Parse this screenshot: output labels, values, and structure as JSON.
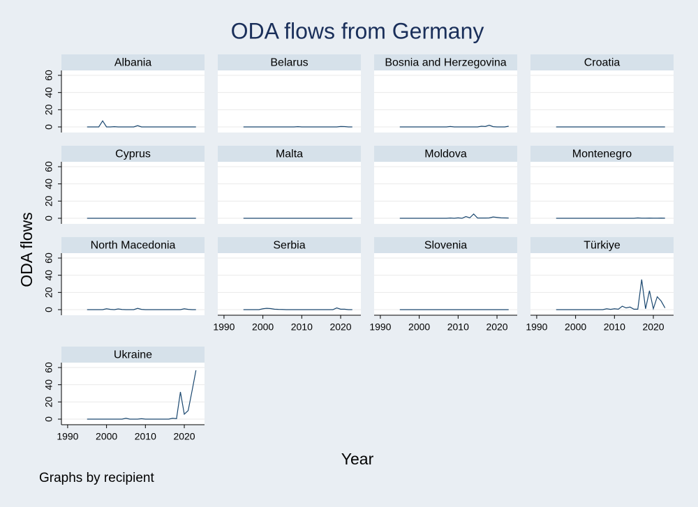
{
  "title": "ODA flows from Germany",
  "y_label": "ODA flows",
  "x_label": "Year",
  "note": "Graphs by recipient",
  "xlim": [
    1988.4,
    2025.2
  ],
  "xticks": [
    1990,
    2000,
    2010,
    2020
  ],
  "ylim": [
    -6.5,
    65.7
  ],
  "yticks": [
    0,
    20,
    40,
    60
  ],
  "grid": true,
  "chart_data": [
    {
      "type": "line",
      "title": "Albania",
      "color": "#1a476f",
      "x": [
        1995,
        1996,
        1997,
        1998,
        1999,
        2000,
        2001,
        2002,
        2003,
        2004,
        2005,
        2006,
        2007,
        2008,
        2009,
        2010,
        2011,
        2012,
        2013,
        2014,
        2015,
        2016,
        2017,
        2018,
        2019,
        2020,
        2021,
        2022,
        2023
      ],
      "values": [
        0,
        0,
        0,
        0,
        7,
        0,
        0,
        0.3,
        0,
        0,
        0,
        0,
        0,
        1.5,
        0,
        0,
        0,
        0,
        0,
        0,
        0,
        0,
        0,
        0,
        0,
        0,
        0,
        0,
        0
      ]
    },
    {
      "type": "line",
      "title": "Belarus",
      "color": "#1a476f",
      "x": [
        1995,
        1996,
        1997,
        1998,
        1999,
        2000,
        2001,
        2002,
        2003,
        2004,
        2005,
        2006,
        2007,
        2008,
        2009,
        2010,
        2011,
        2012,
        2013,
        2014,
        2015,
        2016,
        2017,
        2018,
        2019,
        2020,
        2021,
        2022,
        2023
      ],
      "values": [
        0,
        0,
        0,
        0,
        0,
        0,
        0,
        0,
        0,
        0,
        0,
        0,
        0,
        0,
        0.3,
        0,
        0,
        0,
        0,
        0,
        0,
        0,
        0,
        0,
        0,
        0.5,
        0.4,
        0,
        0
      ]
    },
    {
      "type": "line",
      "title": "Bosnia and Herzegovina",
      "color": "#1a476f",
      "x": [
        1995,
        1996,
        1997,
        1998,
        1999,
        2000,
        2001,
        2002,
        2003,
        2004,
        2005,
        2006,
        2007,
        2008,
        2009,
        2010,
        2011,
        2012,
        2013,
        2014,
        2015,
        2016,
        2017,
        2018,
        2019,
        2020,
        2021,
        2022,
        2023
      ],
      "values": [
        0,
        0,
        0,
        0,
        0,
        0,
        0,
        0,
        0,
        0,
        0,
        0,
        0,
        0.5,
        0,
        0,
        0,
        0,
        0,
        0,
        0,
        0.8,
        0.5,
        2,
        0.3,
        0,
        0,
        0,
        0.8
      ]
    },
    {
      "type": "line",
      "title": "Croatia",
      "color": "#1a476f",
      "x": [
        1995,
        1996,
        1997,
        1998,
        1999,
        2000,
        2001,
        2002,
        2003,
        2004,
        2005,
        2006,
        2007,
        2008,
        2009,
        2010,
        2011,
        2012,
        2013,
        2014,
        2015,
        2016,
        2017,
        2018,
        2019,
        2020,
        2021,
        2022,
        2023
      ],
      "values": [
        0,
        0,
        0,
        0,
        0,
        0,
        0,
        0,
        0,
        0,
        0,
        0,
        0,
        0,
        0,
        0,
        0,
        0,
        0,
        0,
        0,
        0,
        0,
        0,
        0,
        0,
        0,
        0,
        0
      ]
    },
    {
      "type": "line",
      "title": "Cyprus",
      "color": "#1a476f",
      "x": [
        1995,
        1996,
        1997,
        1998,
        1999,
        2000,
        2001,
        2002,
        2003,
        2004,
        2005,
        2006,
        2007,
        2008,
        2009,
        2010,
        2011,
        2012,
        2013,
        2014,
        2015,
        2016,
        2017,
        2018,
        2019,
        2020,
        2021,
        2022,
        2023
      ],
      "values": [
        0,
        0,
        0,
        0,
        0,
        0,
        0,
        0,
        0,
        0,
        0,
        0,
        0,
        0,
        0,
        0,
        0,
        0,
        0,
        0,
        0,
        0,
        0,
        0,
        0,
        0,
        0,
        0,
        0
      ]
    },
    {
      "type": "line",
      "title": "Malta",
      "color": "#1a476f",
      "x": [
        1995,
        1996,
        1997,
        1998,
        1999,
        2000,
        2001,
        2002,
        2003,
        2004,
        2005,
        2006,
        2007,
        2008,
        2009,
        2010,
        2011,
        2012,
        2013,
        2014,
        2015,
        2016,
        2017,
        2018,
        2019,
        2020,
        2021,
        2022,
        2023
      ],
      "values": [
        0,
        0,
        0,
        0,
        0,
        0,
        0,
        0,
        0,
        0,
        0,
        0,
        0,
        0,
        0,
        0,
        0,
        0,
        0,
        0,
        0,
        0,
        0,
        0,
        0,
        0,
        0,
        0,
        0
      ]
    },
    {
      "type": "line",
      "title": "Moldova",
      "color": "#1a476f",
      "x": [
        1995,
        1996,
        1997,
        1998,
        1999,
        2000,
        2001,
        2002,
        2003,
        2004,
        2005,
        2006,
        2007,
        2008,
        2009,
        2010,
        2011,
        2012,
        2013,
        2014,
        2015,
        2016,
        2017,
        2018,
        2019,
        2020,
        2021,
        2022,
        2023
      ],
      "values": [
        0,
        0,
        0,
        0,
        0,
        0,
        0,
        0,
        0,
        0,
        0,
        0,
        0,
        0.3,
        0,
        0.5,
        0,
        2,
        0.5,
        5,
        0.3,
        0.3,
        0.3,
        0.4,
        1.5,
        1,
        0.5,
        0.4,
        0.3
      ]
    },
    {
      "type": "line",
      "title": "Montenegro",
      "color": "#1a476f",
      "x": [
        1995,
        1996,
        1997,
        1998,
        1999,
        2000,
        2001,
        2002,
        2003,
        2004,
        2005,
        2006,
        2007,
        2008,
        2009,
        2010,
        2011,
        2012,
        2013,
        2014,
        2015,
        2016,
        2017,
        2018,
        2019,
        2020,
        2021,
        2022,
        2023
      ],
      "values": [
        0,
        0,
        0,
        0,
        0,
        0,
        0,
        0,
        0,
        0,
        0,
        0,
        0,
        0,
        0,
        0,
        0,
        0,
        0,
        0,
        0,
        0.4,
        0.1,
        0.1,
        0.2,
        0.1,
        0.1,
        0.2,
        0.1
      ]
    },
    {
      "type": "line",
      "title": "North Macedonia",
      "color": "#1a476f",
      "x": [
        1995,
        1996,
        1997,
        1998,
        1999,
        2000,
        2001,
        2002,
        2003,
        2004,
        2005,
        2006,
        2007,
        2008,
        2009,
        2010,
        2011,
        2012,
        2013,
        2014,
        2015,
        2016,
        2017,
        2018,
        2019,
        2020,
        2021,
        2022,
        2023
      ],
      "values": [
        0,
        0,
        0,
        0,
        0,
        1,
        0.3,
        0,
        0.8,
        0.2,
        0,
        0,
        0,
        1.5,
        0.3,
        0,
        0,
        0,
        0,
        0,
        0,
        0,
        0,
        0,
        0,
        1,
        0.3,
        0,
        0
      ]
    },
    {
      "type": "line",
      "title": "Serbia",
      "color": "#1a476f",
      "x": [
        1995,
        1996,
        1997,
        1998,
        1999,
        2000,
        2001,
        2002,
        2003,
        2004,
        2005,
        2006,
        2007,
        2008,
        2009,
        2010,
        2011,
        2012,
        2013,
        2014,
        2015,
        2016,
        2017,
        2018,
        2019,
        2020,
        2021,
        2022,
        2023
      ],
      "values": [
        0,
        0,
        0,
        0,
        0,
        1,
        1.5,
        1.2,
        0.5,
        0.3,
        0.2,
        0,
        0,
        0,
        0,
        0,
        0,
        0,
        0,
        0,
        0,
        0,
        0,
        0,
        2,
        0.5,
        0.5,
        0,
        0
      ]
    },
    {
      "type": "line",
      "title": "Slovenia",
      "color": "#1a476f",
      "x": [
        1995,
        1996,
        1997,
        1998,
        1999,
        2000,
        2001,
        2002,
        2003,
        2004,
        2005,
        2006,
        2007,
        2008,
        2009,
        2010,
        2011,
        2012,
        2013,
        2014,
        2015,
        2016,
        2017,
        2018,
        2019,
        2020,
        2021,
        2022,
        2023
      ],
      "values": [
        0,
        0,
        0,
        0,
        0,
        0,
        0,
        0,
        0,
        0,
        0,
        0,
        0,
        0,
        0,
        0,
        0,
        0,
        0,
        0,
        0,
        0,
        0,
        0,
        0,
        0,
        0,
        0,
        0
      ]
    },
    {
      "type": "line",
      "title": "Türkiye",
      "color": "#1a476f",
      "x": [
        1995,
        1996,
        1997,
        1998,
        1999,
        2000,
        2001,
        2002,
        2003,
        2004,
        2005,
        2006,
        2007,
        2008,
        2009,
        2010,
        2011,
        2012,
        2013,
        2014,
        2015,
        2016,
        2017,
        2018,
        2019,
        2020,
        2021,
        2022,
        2023
      ],
      "values": [
        0,
        0,
        0,
        0,
        0,
        0,
        0,
        0,
        0,
        0,
        0,
        0,
        0,
        1,
        0.3,
        1,
        0.5,
        4,
        2,
        3,
        0.5,
        0.5,
        35,
        1,
        22,
        1,
        15,
        10,
        2
      ]
    },
    {
      "type": "line",
      "title": "Ukraine",
      "color": "#1a476f",
      "x": [
        1995,
        1996,
        1997,
        1998,
        1999,
        2000,
        2001,
        2002,
        2003,
        2004,
        2005,
        2006,
        2007,
        2008,
        2009,
        2010,
        2011,
        2012,
        2013,
        2014,
        2015,
        2016,
        2017,
        2018,
        2019,
        2020,
        2021,
        2022,
        2023
      ],
      "values": [
        0,
        0,
        0,
        0,
        0,
        0,
        0,
        0,
        0,
        0,
        1,
        0,
        0,
        0,
        0.5,
        0,
        0,
        0,
        0,
        0,
        0,
        0,
        1,
        0.5,
        31.6,
        5.7,
        10,
        33,
        56.8
      ]
    }
  ]
}
